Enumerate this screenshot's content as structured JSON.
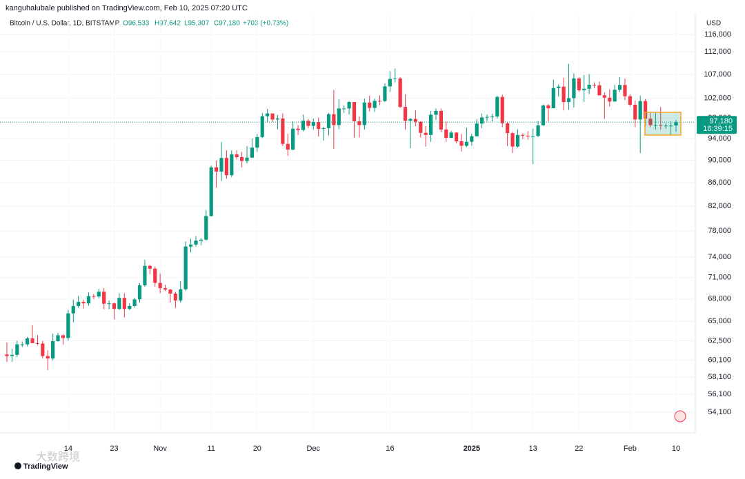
{
  "header": {
    "published": "kanguhalubale published on TradingView.com, Feb 10, 2025 07:20 UTC",
    "symbol": "Bitcoin / U.S. Dollar, 1D, BITSTAMP",
    "open": "O96,533",
    "high": "H97,642",
    "low": "L95,307",
    "close": "C97,180",
    "change": "+703 (+0.73%)",
    "currency": "USD",
    "brand": "TradingView",
    "watermark": "大数跨境"
  },
  "chart_data": {
    "type": "candlestick",
    "log_scale": true,
    "grid": true,
    "up_color": "#089981",
    "down_color": "#f23645",
    "ylim": [
      51900,
      117950
    ],
    "yticks": [
      {
        "value": 54100,
        "label": "54,100"
      },
      {
        "value": 56100,
        "label": "56,100"
      },
      {
        "value": 58100,
        "label": "58,100"
      },
      {
        "value": 60100,
        "label": "60,100"
      },
      {
        "value": 62500,
        "label": "62,500"
      },
      {
        "value": 65000,
        "label": "65,000"
      },
      {
        "value": 68000,
        "label": "68,000"
      },
      {
        "value": 71000,
        "label": "71,000"
      },
      {
        "value": 74000,
        "label": "74,000"
      },
      {
        "value": 78000,
        "label": "78,000"
      },
      {
        "value": 82000,
        "label": "82,000"
      },
      {
        "value": 86000,
        "label": "86,000"
      },
      {
        "value": 90000,
        "label": "90,000"
      },
      {
        "value": 94000,
        "label": "94,000"
      },
      {
        "value": 98000,
        "label": "98,000"
      },
      {
        "value": 102000,
        "label": "102,000"
      },
      {
        "value": 107000,
        "label": "107,000"
      },
      {
        "value": 112000,
        "label": "112,000"
      },
      {
        "value": 116000,
        "label": "116,000"
      }
    ],
    "xticks": [
      {
        "value": 12,
        "label": "14"
      },
      {
        "value": 21,
        "label": "23"
      },
      {
        "value": 30,
        "label": "Nov"
      },
      {
        "value": 40,
        "label": "11"
      },
      {
        "value": 49,
        "label": "20"
      },
      {
        "value": 60,
        "label": "Dec"
      },
      {
        "value": 75,
        "label": "16"
      },
      {
        "value": 91,
        "label": "2025"
      },
      {
        "value": 103,
        "label": "13"
      },
      {
        "value": 112,
        "label": "22"
      },
      {
        "value": 122,
        "label": "Feb"
      },
      {
        "value": 131,
        "label": "10"
      }
    ],
    "last_price": {
      "value": 97180,
      "label": "97,180",
      "countdown": "16:39:15"
    },
    "candles": [
      [
        60800,
        62300,
        59900,
        60600
      ],
      [
        60600,
        61500,
        59900,
        60750
      ],
      [
        60750,
        62500,
        60500,
        62050
      ],
      [
        62050,
        62400,
        61700,
        62050
      ],
      [
        62050,
        63000,
        61800,
        62800
      ],
      [
        62800,
        64500,
        62200,
        62200
      ],
      [
        62200,
        63200,
        61900,
        62150
      ],
      [
        62150,
        62500,
        60300,
        60600
      ],
      [
        60600,
        61300,
        58900,
        60300
      ],
      [
        60300,
        63400,
        60100,
        62450
      ],
      [
        62450,
        63500,
        62400,
        63200
      ],
      [
        63200,
        63300,
        62000,
        62850
      ],
      [
        62850,
        66500,
        62500,
        66050
      ],
      [
        66050,
        67900,
        64900,
        67050
      ],
      [
        67050,
        68400,
        66800,
        67600
      ],
      [
        67600,
        67900,
        66700,
        67400
      ],
      [
        67400,
        68900,
        67100,
        68400
      ],
      [
        68400,
        68700,
        68000,
        68350
      ],
      [
        68350,
        69400,
        68100,
        69000
      ],
      [
        69000,
        69500,
        66600,
        67350
      ],
      [
        67350,
        67800,
        66600,
        67400
      ],
      [
        67400,
        67500,
        65300,
        66650
      ],
      [
        66650,
        68800,
        66500,
        68150
      ],
      [
        68150,
        68800,
        65500,
        66650
      ],
      [
        66650,
        67400,
        66500,
        67050
      ],
      [
        67050,
        68200,
        66800,
        67950
      ],
      [
        67950,
        70200,
        67500,
        69900
      ],
      [
        69900,
        73600,
        69700,
        72700
      ],
      [
        72700,
        72900,
        71500,
        72300
      ],
      [
        72300,
        72600,
        69700,
        70250
      ],
      [
        70250,
        71600,
        68800,
        69500
      ],
      [
        69500,
        70000,
        69100,
        69300
      ],
      [
        69300,
        69400,
        67500,
        68750
      ],
      [
        68750,
        69000,
        66800,
        67800
      ],
      [
        67800,
        70500,
        67500,
        69350
      ],
      [
        69350,
        76400,
        69100,
        75600
      ],
      [
        75600,
        76800,
        74700,
        75900
      ],
      [
        75900,
        77200,
        75600,
        76500
      ],
      [
        76500,
        76900,
        75800,
        76650
      ],
      [
        76650,
        81400,
        76500,
        80400
      ],
      [
        80400,
        89000,
        80300,
        88700
      ],
      [
        88700,
        89900,
        85100,
        87950
      ],
      [
        87950,
        93400,
        86300,
        90400
      ],
      [
        90400,
        91800,
        86700,
        87300
      ],
      [
        87300,
        91800,
        87000,
        91050
      ],
      [
        91050,
        91800,
        90100,
        90550
      ],
      [
        90550,
        91500,
        88700,
        89850
      ],
      [
        89850,
        92600,
        89400,
        90450
      ],
      [
        90450,
        94000,
        90400,
        92300
      ],
      [
        92300,
        94900,
        91500,
        94300
      ],
      [
        94300,
        99000,
        94100,
        98350
      ],
      [
        98350,
        99800,
        97200,
        98900
      ],
      [
        98900,
        98900,
        97200,
        97700
      ],
      [
        97700,
        98600,
        95800,
        97900
      ],
      [
        97900,
        98900,
        92600,
        93000
      ],
      [
        93000,
        94900,
        90800,
        91950
      ],
      [
        91950,
        97300,
        91800,
        95900
      ],
      [
        95900,
        96600,
        94700,
        95650
      ],
      [
        95650,
        98700,
        95400,
        97450
      ],
      [
        97450,
        97800,
        96000,
        96450
      ],
      [
        96450,
        97900,
        95700,
        97200
      ],
      [
        97200,
        98100,
        94400,
        95850
      ],
      [
        95850,
        96300,
        93600,
        96000
      ],
      [
        96000,
        99000,
        94600,
        98750
      ],
      [
        98750,
        103700,
        92100,
        96600
      ],
      [
        96600,
        101800,
        95800,
        99900
      ],
      [
        99900,
        100500,
        99000,
        99900
      ],
      [
        99900,
        101400,
        98700,
        101200
      ],
      [
        101200,
        101200,
        94200,
        97350
      ],
      [
        97350,
        98300,
        94200,
        96600
      ],
      [
        96600,
        101900,
        95700,
        101100
      ],
      [
        101100,
        102500,
        99300,
        100000
      ],
      [
        100000,
        101900,
        99200,
        101450
      ],
      [
        101450,
        102600,
        100600,
        101400
      ],
      [
        101400,
        105100,
        101200,
        104450
      ],
      [
        104450,
        107700,
        103300,
        106050
      ],
      [
        106050,
        108300,
        105300,
        106150
      ],
      [
        106150,
        106400,
        100000,
        100200
      ],
      [
        100200,
        102800,
        95700,
        97450
      ],
      [
        97450,
        98000,
        92200,
        97800
      ],
      [
        97800,
        99500,
        96400,
        97250
      ],
      [
        97250,
        97400,
        94200,
        95100
      ],
      [
        95100,
        96400,
        92500,
        94700
      ],
      [
        94700,
        99400,
        93400,
        98650
      ],
      [
        98650,
        99900,
        97600,
        99400
      ],
      [
        99400,
        99900,
        95200,
        95750
      ],
      [
        95750,
        97300,
        93400,
        94150
      ],
      [
        94150,
        95500,
        94100,
        95150
      ],
      [
        95150,
        95200,
        93100,
        93500
      ],
      [
        93500,
        94900,
        91600,
        92650
      ],
      [
        92650,
        96100,
        92400,
        93400
      ],
      [
        93400,
        94900,
        92700,
        94450
      ],
      [
        94450,
        97800,
        94400,
        96900
      ],
      [
        96900,
        98900,
        96000,
        98100
      ],
      [
        98100,
        98700,
        97300,
        98200
      ],
      [
        98200,
        98800,
        97300,
        98300
      ],
      [
        98300,
        102500,
        97900,
        102250
      ],
      [
        102250,
        102700,
        96200,
        96950
      ],
      [
        96950,
        97200,
        92600,
        95050
      ],
      [
        95050,
        95300,
        91300,
        92500
      ],
      [
        92500,
        95800,
        92300,
        94700
      ],
      [
        94700,
        95000,
        93900,
        94550
      ],
      [
        94550,
        95400,
        93800,
        94500
      ],
      [
        94500,
        95900,
        89300,
        94500
      ],
      [
        94500,
        97400,
        94300,
        96550
      ],
      [
        96550,
        100700,
        96500,
        100500
      ],
      [
        100500,
        100800,
        97300,
        99950
      ],
      [
        99950,
        105900,
        99900,
        104100
      ],
      [
        104100,
        104900,
        102300,
        104400
      ],
      [
        104400,
        106300,
        99500,
        101200
      ],
      [
        101200,
        109300,
        99600,
        102000
      ],
      [
        102000,
        107200,
        100100,
        106150
      ],
      [
        106150,
        106400,
        103300,
        103650
      ],
      [
        103650,
        106900,
        101200,
        103950
      ],
      [
        103950,
        107100,
        102800,
        104800
      ],
      [
        104800,
        105300,
        104100,
        104700
      ],
      [
        104700,
        105500,
        102500,
        102600
      ],
      [
        102600,
        103200,
        97800,
        102100
      ],
      [
        102100,
        103800,
        100300,
        101300
      ],
      [
        101300,
        104800,
        101300,
        103750
      ],
      [
        103750,
        106400,
        103300,
        104750
      ],
      [
        104750,
        106100,
        101600,
        102400
      ],
      [
        102400,
        102800,
        100300,
        100650
      ],
      [
        100650,
        101500,
        96200,
        97700
      ],
      [
        97700,
        102500,
        91300,
        101400
      ],
      [
        101400,
        101800,
        96200,
        97850
      ],
      [
        97850,
        99000,
        96200,
        96600
      ],
      [
        96600,
        99200,
        95700,
        96600
      ],
      [
        96600,
        100200,
        95700,
        96500
      ],
      [
        96500,
        96900,
        95900,
        96500
      ],
      [
        96500,
        97300,
        94700,
        96500
      ],
      [
        96533,
        97642,
        95307,
        97180
      ]
    ]
  }
}
